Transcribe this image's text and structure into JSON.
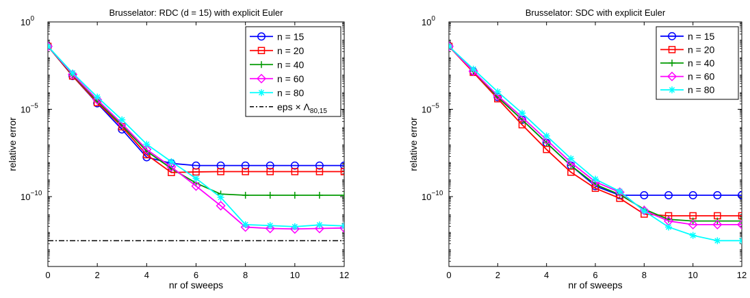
{
  "chart_data": [
    {
      "type": "line",
      "title": "Brusselator: RDC (d = 15) with explicit Euler",
      "xlabel": "nr of sweeps",
      "ylabel": "relative error",
      "xlim": [
        0,
        12
      ],
      "xticks": [
        0,
        2,
        4,
        6,
        8,
        10,
        12
      ],
      "ylog": true,
      "ylim": [
        1e-14,
        1
      ],
      "yticks": [
        {
          "value": 1,
          "base": "10",
          "exp": "0"
        },
        {
          "value": 1e-05,
          "base": "10",
          "exp": "−5"
        },
        {
          "value": 1e-10,
          "base": "10",
          "exp": "−10"
        }
      ],
      "grid": false,
      "legend_position": "top-right",
      "x": [
        0,
        1,
        2,
        3,
        4,
        5,
        6,
        7,
        8,
        9,
        10,
        11,
        12
      ],
      "series": [
        {
          "name": "n = 15",
          "color": "#0000ff",
          "marker": "circle",
          "values": [
            0.04,
            0.0008,
            2.2e-05,
            7e-07,
            1.8e-08,
            8e-09,
            6e-09,
            6e-09,
            6e-09,
            6e-09,
            6e-09,
            6e-09,
            6e-09
          ]
        },
        {
          "name": "n = 20",
          "color": "#ff0000",
          "marker": "square",
          "values": [
            0.04,
            0.0008,
            2.4e-05,
            1e-06,
            2.5e-08,
            2.4e-09,
            2.6e-09,
            2.7e-09,
            2.7e-09,
            2.7e-09,
            2.7e-09,
            2.7e-09,
            2.7e-09
          ]
        },
        {
          "name": "n = 40",
          "color": "#009900",
          "marker": "plus",
          "values": [
            0.04,
            0.0009,
            3e-05,
            1.2e-06,
            4e-08,
            4e-09,
            6e-10,
            1.4e-10,
            1.2e-10,
            1.2e-10,
            1.2e-10,
            1.2e-10,
            1.2e-10
          ]
        },
        {
          "name": "n = 60",
          "color": "#ff00ff",
          "marker": "diamond",
          "values": [
            0.04,
            0.001,
            3.5e-05,
            1.5e-06,
            5e-08,
            5e-09,
            4e-10,
            3e-11,
            1.8e-12,
            1.5e-12,
            1.4e-12,
            1.5e-12,
            1.6e-12
          ]
        },
        {
          "name": "n = 80",
          "color": "#00ffff",
          "marker": "star",
          "values": [
            0.04,
            0.0012,
            5e-05,
            2.5e-06,
            1e-07,
            1e-08,
            1.1e-09,
            9e-11,
            2.5e-12,
            2.2e-12,
            1.9e-12,
            2.4e-12,
            2.1e-12
          ]
        }
      ],
      "reference_line": {
        "name_prefix": "eps × Λ",
        "name_subscript": "80,15",
        "value": 3e-13,
        "style": "dash-dot",
        "color": "#000000"
      }
    },
    {
      "type": "line",
      "title": "Brusselator: SDC with explicit Euler",
      "xlabel": "nr of sweeps",
      "ylabel": "relative error",
      "xlim": [
        0,
        12
      ],
      "xticks": [
        0,
        2,
        4,
        6,
        8,
        10,
        12
      ],
      "ylog": true,
      "ylim": [
        1e-14,
        1
      ],
      "yticks": [
        {
          "value": 1,
          "base": "10",
          "exp": "0"
        },
        {
          "value": 1e-05,
          "base": "10",
          "exp": "−5"
        },
        {
          "value": 1e-10,
          "base": "10",
          "exp": "−10"
        }
      ],
      "grid": false,
      "legend_position": "top-right",
      "x": [
        0,
        1,
        2,
        3,
        4,
        5,
        6,
        7,
        8,
        9,
        10,
        11,
        12
      ],
      "series": [
        {
          "name": "n = 15",
          "color": "#0000ff",
          "marker": "circle",
          "values": [
            0.04,
            0.0015,
            5e-05,
            2.5e-06,
            1.2e-07,
            6e-09,
            4e-10,
            1.2e-10,
            1.2e-10,
            1.2e-10,
            1.2e-10,
            1.2e-10,
            1.2e-10
          ]
        },
        {
          "name": "n = 20",
          "color": "#ff0000",
          "marker": "square",
          "values": [
            0.04,
            0.0013,
            4e-05,
            1.3e-06,
            5e-08,
            2.5e-09,
            3e-10,
            8e-11,
            1e-11,
            8e-12,
            8e-12,
            8e-12,
            8e-12
          ]
        },
        {
          "name": "n = 40",
          "color": "#009900",
          "marker": "plus",
          "values": [
            0.04,
            0.0015,
            5e-05,
            2.5e-06,
            1.2e-07,
            6e-09,
            5e-10,
            1.3e-10,
            1.9e-11,
            5e-12,
            4e-12,
            4e-12,
            4e-12
          ]
        },
        {
          "name": "n = 60",
          "color": "#ff00ff",
          "marker": "diamond",
          "values": [
            0.04,
            0.0015,
            6e-05,
            3.5e-06,
            1.8e-07,
            9e-09,
            7e-10,
            1.8e-10,
            1.6e-11,
            4e-12,
            2.5e-12,
            2.5e-12,
            2.5e-12
          ]
        },
        {
          "name": "n = 80",
          "color": "#00ffff",
          "marker": "star",
          "values": [
            0.04,
            0.002,
            0.0001,
            6e-06,
            3e-07,
            1.5e-08,
            1e-09,
            2e-10,
            1.5e-11,
            1.8e-12,
            6e-13,
            3e-13,
            3e-13
          ]
        }
      ]
    }
  ]
}
